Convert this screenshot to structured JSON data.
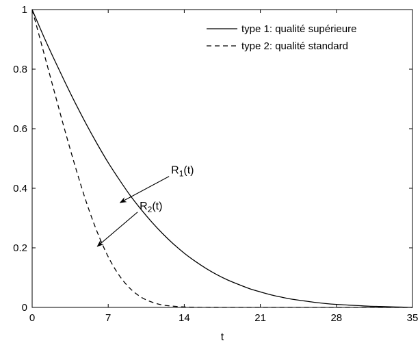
{
  "chart_data": {
    "type": "line",
    "xlabel": "t",
    "ylabel": "",
    "xlim": [
      0,
      35
    ],
    "ylim": [
      0,
      1
    ],
    "xticks": [
      0,
      7,
      14,
      21,
      28,
      35
    ],
    "yticks": [
      0,
      0.2,
      0.4,
      0.6,
      0.8,
      1
    ],
    "xtick_labels": [
      "0",
      "7",
      "14",
      "21",
      "28",
      "35"
    ],
    "ytick_labels": [
      "0",
      "0.2",
      "0.4",
      "0.6",
      "0.8",
      "1"
    ],
    "grid": false,
    "legend_position": "top-right",
    "series": [
      {
        "name": "type 1: qualité supérieure",
        "style": "solid",
        "color": "#000000",
        "x": [
          0,
          1,
          2,
          3,
          4,
          5,
          6,
          7,
          8,
          9,
          10,
          11,
          12,
          13,
          14,
          15,
          16,
          17,
          18,
          19,
          20,
          21,
          22,
          23,
          24,
          25,
          26,
          27,
          28,
          29,
          30,
          31,
          32,
          33,
          34,
          35
        ],
        "y": [
          1.0,
          0.915,
          0.835,
          0.758,
          0.684,
          0.614,
          0.548,
          0.486,
          0.43,
          0.377,
          0.33,
          0.287,
          0.248,
          0.213,
          0.182,
          0.155,
          0.131,
          0.11,
          0.092,
          0.077,
          0.063,
          0.052,
          0.042,
          0.034,
          0.027,
          0.022,
          0.017,
          0.013,
          0.01,
          0.008,
          0.006,
          0.004,
          0.003,
          0.002,
          0.001,
          0.0
        ]
      },
      {
        "name": "type 2: qualité standard",
        "style": "dashed",
        "color": "#000000",
        "x": [
          0,
          1,
          2,
          3,
          4,
          5,
          6,
          7,
          8,
          9,
          10,
          11,
          12,
          13,
          14,
          15,
          16,
          17,
          18,
          19,
          20,
          21,
          22,
          23,
          24,
          25,
          26,
          27,
          28,
          29,
          30,
          31,
          32,
          33,
          34,
          35
        ],
        "y": [
          1.0,
          0.865,
          0.73,
          0.596,
          0.469,
          0.352,
          0.252,
          0.17,
          0.108,
          0.064,
          0.035,
          0.018,
          0.008,
          0.004,
          0.0015,
          0.0006,
          0.0002,
          0.0001,
          0,
          0,
          0,
          0,
          0,
          0,
          0,
          0,
          0,
          0,
          0,
          0,
          0,
          0,
          0,
          0,
          0,
          0
        ]
      }
    ],
    "annotations": [
      {
        "base": "R",
        "sub": "1",
        "suffix": "(t)",
        "target_series": 0,
        "arrow_to": [
          8.1,
          0.352
        ],
        "arrow_from": [
          12.6,
          0.44
        ]
      },
      {
        "base": "R",
        "sub": "2",
        "suffix": "(t)",
        "target_series": 1,
        "arrow_to": [
          6.0,
          0.205
        ],
        "arrow_from": [
          9.7,
          0.32
        ]
      }
    ]
  }
}
